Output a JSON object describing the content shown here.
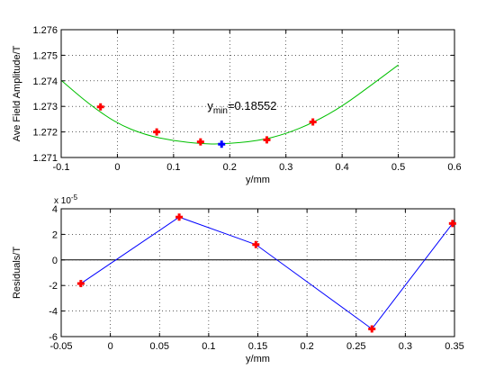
{
  "chart_data": [
    {
      "type": "scatter",
      "xlabel": "y/mm",
      "ylabel": "Ave Field Amplitude/T",
      "xlim": [
        -0.1,
        0.6
      ],
      "ylim": [
        1.271,
        1.276
      ],
      "xticks": [
        -0.1,
        0,
        0.1,
        0.2,
        0.3,
        0.4,
        0.5,
        0.6
      ],
      "yticks": [
        1.271,
        1.272,
        1.273,
        1.274,
        1.275,
        1.276
      ],
      "grid": "dotted",
      "series": [
        {
          "kind": "markers",
          "color": "#ff0000",
          "marker": "plus",
          "x": [
            -0.03,
            0.07,
            0.148,
            0.266,
            0.348
          ],
          "y": [
            1.27298,
            1.272,
            1.27161,
            1.27169,
            1.27239
          ]
        },
        {
          "kind": "fit-curve",
          "color": "#00c000",
          "x": [
            -0.1,
            -0.05,
            0.0,
            0.05,
            0.1,
            0.15,
            0.1855,
            0.25,
            0.3,
            0.35,
            0.4,
            0.45,
            0.5
          ],
          "y": [
            1.27402,
            1.27308,
            1.27232,
            1.27188,
            1.27165,
            1.27154,
            1.27152,
            1.27165,
            1.27192,
            1.27238,
            1.273,
            1.2738,
            1.27462
          ]
        },
        {
          "kind": "minimum-marker",
          "color": "#0000ff",
          "marker": "plus",
          "x": [
            0.1855
          ],
          "y": [
            1.27152
          ]
        }
      ],
      "annotation": {
        "prefix": "y",
        "subscript": "min",
        "value_text": "=0.18552",
        "x": 0.16,
        "y": 1.27286
      }
    },
    {
      "type": "line",
      "xlabel": "y/mm",
      "ylabel": "Residuals/T",
      "exponent_label": "x 10",
      "exponent_power": "-5",
      "xlim": [
        -0.05,
        0.35
      ],
      "ylim": [
        -6,
        4
      ],
      "xticks": [
        -0.05,
        0,
        0.05,
        0.1,
        0.15,
        0.2,
        0.25,
        0.3,
        0.35
      ],
      "yticks": [
        -6,
        -4,
        -2,
        0,
        2,
        4
      ],
      "grid": "dotted",
      "zero_line": true,
      "series": [
        {
          "line_color": "#0000ff",
          "marker_color": "#ff0000",
          "marker": "plus",
          "x": [
            -0.03,
            0.07,
            0.148,
            0.266,
            0.348
          ],
          "y": [
            -1.85,
            3.35,
            1.2,
            -5.4,
            2.85
          ]
        }
      ]
    }
  ]
}
